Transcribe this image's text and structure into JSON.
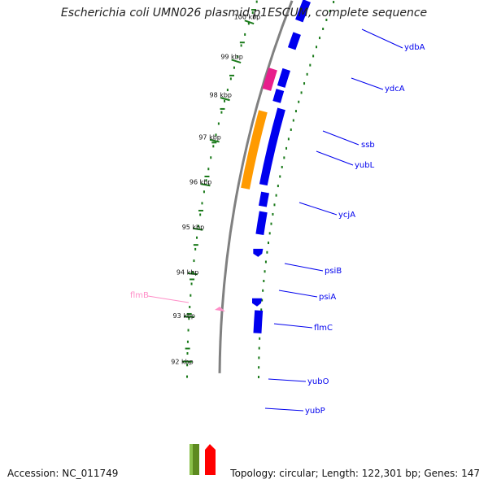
{
  "title": "Escherichia coli UMN026 plasmid p1ESCUM, complete sequence",
  "footer": {
    "accession": "Accession: NC_011749",
    "topology": "Topology: circular; Length: 122,301 bp; Genes: 147"
  },
  "colors": {
    "backbone": "#808080",
    "tick": "#1a7a1a",
    "cds": "#0000ee",
    "label_line": "#0000ee",
    "ssb": "#e81e8c",
    "ycjA": "#ff9a00",
    "flmB": "#ff8fc8",
    "green_bar": "#5d8a20",
    "red_arrow": "#ff0000"
  },
  "ticks": [
    {
      "label": "101 kbp"
    },
    {
      "label": "100 kbp"
    },
    {
      "label": "99 kbp"
    },
    {
      "label": "98 kbp"
    },
    {
      "label": "97 kbp"
    },
    {
      "label": "96 kbp"
    },
    {
      "label": "95 kbp"
    },
    {
      "label": "94 kbp"
    },
    {
      "label": "93 kbp"
    },
    {
      "label": "92 kbp"
    }
  ],
  "genes": [
    {
      "name": "ydbA"
    },
    {
      "name": "ydcA"
    },
    {
      "name": "ssb"
    },
    {
      "name": "yubL"
    },
    {
      "name": "ycjA"
    },
    {
      "name": "psiB"
    },
    {
      "name": "psiA"
    },
    {
      "name": "flmC"
    },
    {
      "name": "yubO"
    },
    {
      "name": "yubP"
    },
    {
      "name": "flmB"
    }
  ]
}
